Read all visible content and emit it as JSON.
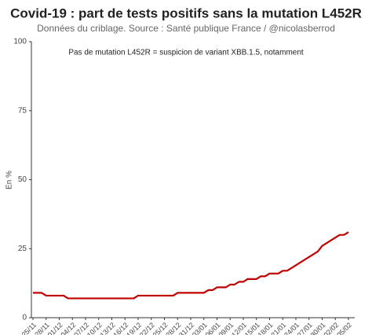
{
  "chart_data": {
    "type": "line",
    "title": "Covid-19 : part de tests positifs sans la mutation L452R",
    "subtitle": "Données du criblage. Source : Santé publique France / @nicolasberrod",
    "annotation": "Pas de mutation L452R = suspicion de variant XBB.1.5, notamment",
    "y_label": "En %",
    "categories": [
      "25/11",
      null,
      null,
      "28/11",
      null,
      null,
      "01/12",
      null,
      null,
      "04/12",
      null,
      null,
      "07/12",
      null,
      null,
      "10/12",
      null,
      null,
      "13/12",
      null,
      null,
      "16/12",
      null,
      null,
      "19/12",
      null,
      null,
      "22/12",
      null,
      null,
      "25/12",
      null,
      null,
      "28/12",
      null,
      null,
      "31/12",
      null,
      null,
      "03/01",
      null,
      null,
      "06/01",
      null,
      null,
      "09/01",
      null,
      null,
      "12/01",
      null,
      null,
      "15/01",
      null,
      null,
      "18/01",
      null,
      null,
      "21/01",
      null,
      null,
      "24/01",
      null,
      null,
      "27/01",
      null,
      null,
      "30/01",
      null,
      null,
      "02/02",
      null,
      null,
      "05/02"
    ],
    "values": [
      9,
      9,
      9,
      8,
      8,
      8,
      8,
      8,
      7,
      7,
      7,
      7,
      7,
      7,
      7,
      7,
      7,
      7,
      7,
      7,
      7,
      7,
      7,
      7,
      8,
      8,
      8,
      8,
      8,
      8,
      8,
      8,
      8,
      9,
      9,
      9,
      9,
      9,
      9,
      9,
      10,
      10,
      11,
      11,
      11,
      12,
      12,
      13,
      13,
      14,
      14,
      14,
      15,
      15,
      16,
      16,
      16,
      17,
      17,
      18,
      19,
      20,
      21,
      22,
      23,
      24,
      26,
      27,
      28,
      29,
      30,
      30,
      31
    ],
    "color": "#c00000",
    "ylim": [
      0,
      100
    ],
    "yticks": [
      0,
      25,
      50,
      75,
      100
    ],
    "grid": false
  }
}
